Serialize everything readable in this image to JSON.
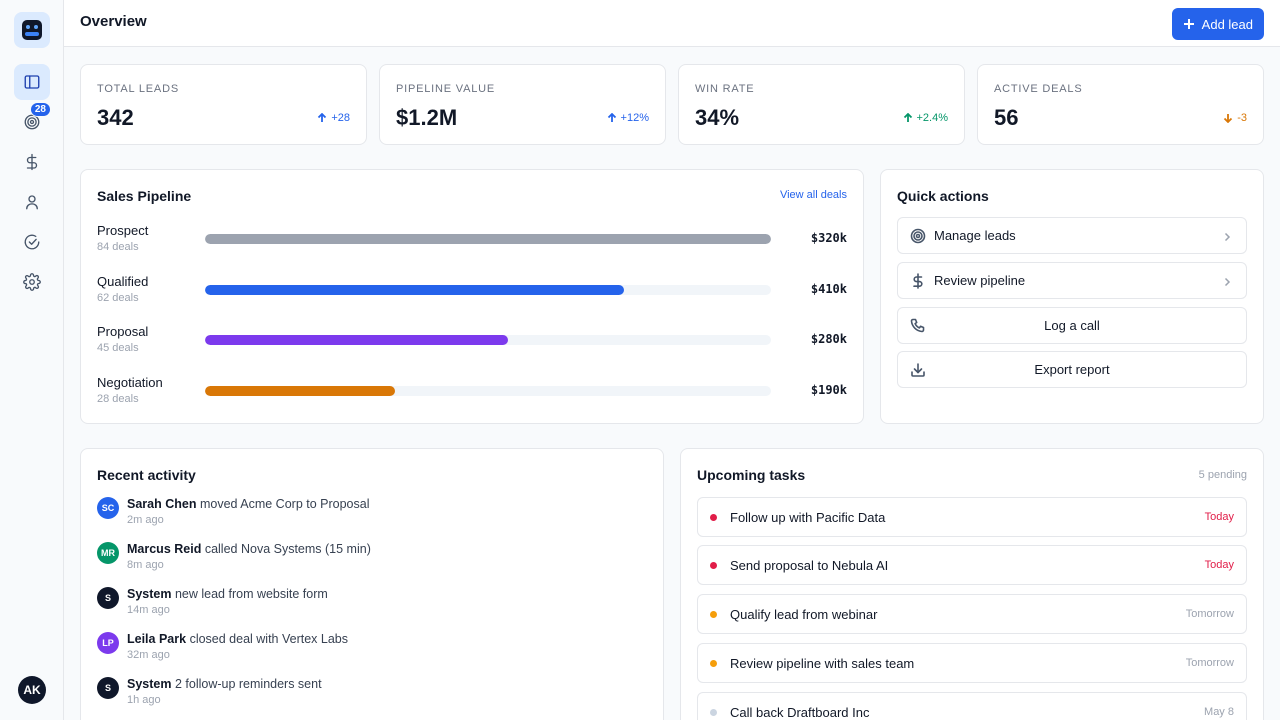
{
  "sidebar": {
    "badge": "28",
    "user_initials": "AK"
  },
  "header": {
    "title": "Overview",
    "add_label": "Add lead"
  },
  "stats": [
    {
      "label": "TOTAL LEADS",
      "value": "342",
      "delta": "+28"
    },
    {
      "label": "PIPELINE VALUE",
      "value": "$1.2M",
      "delta": "+12%"
    },
    {
      "label": "WIN RATE",
      "value": "34%",
      "delta": "+2.4%"
    },
    {
      "label": "ACTIVE DEALS",
      "value": "56",
      "delta": "-3"
    }
  ],
  "pipeline": {
    "title": "Sales Pipeline",
    "link": "View all deals",
    "stages": [
      {
        "name": "Prospect",
        "count": "84 deals",
        "amount": "$320k",
        "fill": 1.0,
        "color": "#9ca3af"
      },
      {
        "name": "Qualified",
        "count": "62 deals",
        "amount": "$410k",
        "fill": 0.74,
        "color": "#2563eb"
      },
      {
        "name": "Proposal",
        "count": "45 deals",
        "amount": "$280k",
        "fill": 0.535,
        "color": "#7c3aed"
      },
      {
        "name": "Negotiation",
        "count": "28 deals",
        "amount": "$190k",
        "fill": 0.335,
        "color": "#d97706"
      }
    ]
  },
  "quick_actions": {
    "title": "Quick actions",
    "items": [
      {
        "label": "Manage leads",
        "icon": "target-icon"
      },
      {
        "label": "Review pipeline",
        "icon": "dollar-icon"
      },
      {
        "label": "Log a call",
        "icon": "phone-icon"
      },
      {
        "label": "Export report",
        "icon": "download-icon"
      }
    ]
  },
  "activity": {
    "title": "Recent activity",
    "items": [
      {
        "initials": "SC",
        "actor": "Sarah Chen",
        "text": "moved Acme Corp to Proposal",
        "time": "2m ago",
        "color": "#2563eb"
      },
      {
        "initials": "MR",
        "actor": "Marcus Reid",
        "text": "called Nova Systems (15 min)",
        "time": "8m ago",
        "color": "#059669"
      },
      {
        "initials": "S",
        "actor": "System",
        "text": "new lead from website form",
        "time": "14m ago",
        "color": "#0f172a"
      },
      {
        "initials": "LP",
        "actor": "Leila Park",
        "text": "closed deal with Vertex Labs",
        "time": "32m ago",
        "color": "#7c3aed"
      },
      {
        "initials": "S",
        "actor": "System",
        "text": "2 follow-up reminders sent",
        "time": "1h ago",
        "color": "#0f172a"
      }
    ]
  },
  "tasks": {
    "title": "Upcoming tasks",
    "pending": "5 pending",
    "items": [
      {
        "label": "Follow up with Pacific Data",
        "due": "Today",
        "dot": "#e11d48"
      },
      {
        "label": "Send proposal to Nebula AI",
        "due": "Today",
        "dot": "#e11d48"
      },
      {
        "label": "Qualify lead from webinar",
        "due": "Tomorrow",
        "dot": "#f59e0b"
      },
      {
        "label": "Review pipeline with sales team",
        "due": "Tomorrow",
        "dot": "#f59e0b"
      },
      {
        "label": "Call back Draftboard Inc",
        "due": "May 8",
        "dot": "#cbd5e1"
      }
    ]
  }
}
